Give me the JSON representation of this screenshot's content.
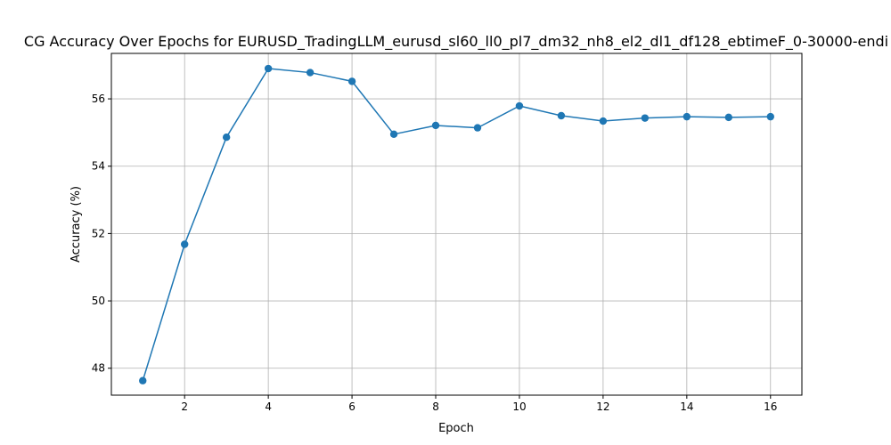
{
  "chart_data": {
    "type": "line",
    "title": "CG Accuracy Over Epochs for EURUSD_TradingLLM_eurusd_sl60_ll0_pl7_dm32_nh8_el2_dl1_df128_ebtimeF_0-30000-endi",
    "xlabel": "Epoch",
    "ylabel": "Accuracy (%)",
    "x": [
      1,
      2,
      3,
      4,
      5,
      6,
      7,
      8,
      9,
      10,
      11,
      12,
      13,
      14,
      15,
      16
    ],
    "series": [
      {
        "values": [
          47.63,
          51.68,
          54.86,
          56.9,
          56.78,
          56.52,
          54.95,
          55.21,
          55.14,
          55.79,
          55.5,
          55.34,
          55.43,
          55.47,
          55.45,
          55.47
        ],
        "color": "#1f77b4",
        "marker": "circle"
      }
    ],
    "xlim": [
      0.25,
      16.75
    ],
    "ylim": [
      47.2,
      57.35
    ],
    "xticks": [
      2,
      4,
      6,
      8,
      10,
      12,
      14,
      16
    ],
    "yticks": [
      48,
      50,
      52,
      54,
      56
    ],
    "grid": true
  }
}
